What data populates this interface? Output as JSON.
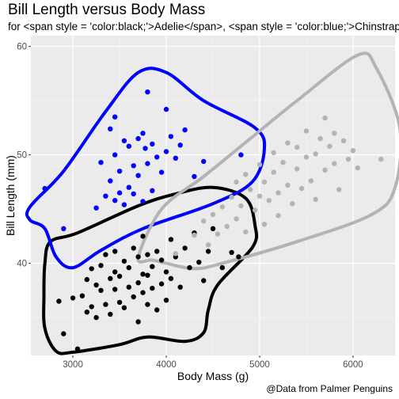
{
  "chart_data": {
    "type": "scatter",
    "title": "Bill Length versus Body Mass",
    "subtitle": "for <span style = 'color:black;'>Adelie</span>, <span style = 'color:blue;'>Chinstrap</span>, and <span style = 'color:gray;'>Gentoo</span> penguins",
    "caption": "@Data from Palmer Penguins",
    "xlabel": "Body Mass (g)",
    "ylabel": "Bill Length (mm)",
    "xlim": [
      2550,
      6450
    ],
    "ylim": [
      31.5,
      61.0
    ],
    "x_ticks": [
      3000,
      4000,
      5000,
      6000
    ],
    "y_ticks": [
      40,
      50,
      60
    ],
    "grid": true,
    "series": [
      {
        "color": "#000000",
        "points": [
          [
            2850,
            36.5
          ],
          [
            2900,
            33.5
          ],
          [
            3000,
            36.8
          ],
          [
            3050,
            32.1
          ],
          [
            3100,
            37.0
          ],
          [
            3150,
            38.5
          ],
          [
            3150,
            35.5
          ],
          [
            3200,
            36.0
          ],
          [
            3200,
            39.5
          ],
          [
            3250,
            38.0
          ],
          [
            3250,
            35.0
          ],
          [
            3300,
            37.5
          ],
          [
            3300,
            39.8
          ],
          [
            3350,
            36.2
          ],
          [
            3350,
            40.8
          ],
          [
            3400,
            38.6
          ],
          [
            3400,
            35.3
          ],
          [
            3450,
            37.6
          ],
          [
            3450,
            39.2
          ],
          [
            3450,
            41.1
          ],
          [
            3500,
            36.4
          ],
          [
            3500,
            38.8
          ],
          [
            3550,
            40.2
          ],
          [
            3550,
            35.9
          ],
          [
            3600,
            37.8
          ],
          [
            3600,
            39.6
          ],
          [
            3650,
            41.4
          ],
          [
            3650,
            36.9
          ],
          [
            3700,
            38.2
          ],
          [
            3700,
            40.6
          ],
          [
            3700,
            34.6
          ],
          [
            3750,
            37.3
          ],
          [
            3750,
            39.0
          ],
          [
            3750,
            42.5
          ],
          [
            3800,
            36.2
          ],
          [
            3800,
            38.9
          ],
          [
            3800,
            40.8
          ],
          [
            3850,
            37.7
          ],
          [
            3850,
            39.7
          ],
          [
            3900,
            41.1
          ],
          [
            3900,
            35.7
          ],
          [
            3950,
            38.1
          ],
          [
            3950,
            40.3
          ],
          [
            4000,
            36.6
          ],
          [
            4000,
            39.2
          ],
          [
            4050,
            42.2
          ],
          [
            4050,
            38.6
          ],
          [
            4100,
            40.6
          ],
          [
            4150,
            37.8
          ],
          [
            4200,
            41.4
          ],
          [
            4250,
            39.6
          ],
          [
            4300,
            42.8
          ],
          [
            4350,
            40.1
          ],
          [
            4400,
            38.4
          ],
          [
            4450,
            41.1
          ],
          [
            4500,
            43.2
          ],
          [
            4600,
            39.6
          ],
          [
            4700,
            41.0
          ],
          [
            4775,
            40.6
          ]
        ]
      },
      {
        "color": "#0000ff",
        "points": [
          [
            2700,
            46.9
          ],
          [
            2900,
            43.2
          ],
          [
            3250,
            45.1
          ],
          [
            3300,
            49.3
          ],
          [
            3350,
            46.2
          ],
          [
            3400,
            52.4
          ],
          [
            3400,
            47.6
          ],
          [
            3450,
            50.0
          ],
          [
            3450,
            45.8
          ],
          [
            3500,
            48.5
          ],
          [
            3500,
            46.5
          ],
          [
            3550,
            51.3
          ],
          [
            3550,
            45.4
          ],
          [
            3600,
            47.0
          ],
          [
            3600,
            50.8
          ],
          [
            3650,
            49.0
          ],
          [
            3650,
            46.4
          ],
          [
            3700,
            51.5
          ],
          [
            3700,
            48.1
          ],
          [
            3750,
            45.7
          ],
          [
            3750,
            52.0
          ],
          [
            3775,
            50.6
          ],
          [
            3800,
            49.2
          ],
          [
            3850,
            51.0
          ],
          [
            3850,
            46.7
          ],
          [
            3900,
            49.8
          ],
          [
            3950,
            48.4
          ],
          [
            4000,
            50.3
          ],
          [
            4050,
            51.7
          ],
          [
            4100,
            49.7
          ],
          [
            4150,
            50.9
          ],
          [
            4300,
            48.0
          ],
          [
            4400,
            49.4
          ],
          [
            4800,
            50.0
          ],
          [
            3800,
            55.8
          ],
          [
            4000,
            54.2
          ],
          [
            4200,
            52.3
          ],
          [
            3450,
            53.5
          ]
        ]
      },
      {
        "color": "#b3b3b3",
        "points": [
          [
            4100,
            40.9
          ],
          [
            4300,
            42.6
          ],
          [
            4400,
            43.9
          ],
          [
            4450,
            41.7
          ],
          [
            4500,
            44.5
          ],
          [
            4550,
            42.7
          ],
          [
            4600,
            45.2
          ],
          [
            4650,
            43.4
          ],
          [
            4700,
            46.1
          ],
          [
            4750,
            44.1
          ],
          [
            4750,
            47.5
          ],
          [
            4800,
            45.3
          ],
          [
            4850,
            48.2
          ],
          [
            4850,
            42.9
          ],
          [
            4900,
            46.8
          ],
          [
            4950,
            44.9
          ],
          [
            5000,
            49.1
          ],
          [
            5000,
            46.2
          ],
          [
            5050,
            43.6
          ],
          [
            5050,
            47.5
          ],
          [
            5100,
            45.8
          ],
          [
            5150,
            50.2
          ],
          [
            5150,
            48.4
          ],
          [
            5200,
            46.5
          ],
          [
            5200,
            44.4
          ],
          [
            5250,
            49.3
          ],
          [
            5300,
            47.2
          ],
          [
            5300,
            51.1
          ],
          [
            5350,
            45.5
          ],
          [
            5400,
            48.7
          ],
          [
            5400,
            50.7
          ],
          [
            5450,
            46.9
          ],
          [
            5500,
            49.8
          ],
          [
            5500,
            52.2
          ],
          [
            5550,
            47.6
          ],
          [
            5600,
            50.1
          ],
          [
            5600,
            45.9
          ],
          [
            5650,
            51.5
          ],
          [
            5700,
            48.6
          ],
          [
            5700,
            53.4
          ],
          [
            5750,
            50.8
          ],
          [
            5800,
            49.2
          ],
          [
            5800,
            52.0
          ],
          [
            5850,
            46.8
          ],
          [
            5900,
            51.3
          ],
          [
            5950,
            49.6
          ],
          [
            6000,
            50.4
          ],
          [
            6050,
            48.8
          ],
          [
            6300,
            49.6
          ]
        ]
      }
    ],
    "hulls": [
      {
        "color": "#000000",
        "points": [
          [
            2700,
            40.0
          ],
          [
            2760,
            42.0
          ],
          [
            3050,
            42.8
          ],
          [
            3700,
            45.3
          ],
          [
            4100,
            46.4
          ],
          [
            4500,
            47.0
          ],
          [
            4850,
            46.0
          ],
          [
            4950,
            43.5
          ],
          [
            4925,
            41.5
          ],
          [
            4550,
            38.0
          ],
          [
            4450,
            35.7
          ],
          [
            4400,
            33.6
          ],
          [
            4200,
            32.8
          ],
          [
            3800,
            33.2
          ],
          [
            3500,
            32.5
          ],
          [
            3000,
            31.8
          ],
          [
            2820,
            31.9
          ],
          [
            2700,
            34.0
          ],
          [
            2690,
            37.0
          ]
        ]
      },
      {
        "color": "#0000ff",
        "points": [
          [
            2540,
            45.2
          ],
          [
            2900,
            48.5
          ],
          [
            3350,
            54.0
          ],
          [
            3700,
            57.6
          ],
          [
            4000,
            57.6
          ],
          [
            4400,
            55.0
          ],
          [
            4950,
            52.5
          ],
          [
            5050,
            50.5
          ],
          [
            4920,
            47.5
          ],
          [
            4500,
            45.5
          ],
          [
            3750,
            43.2
          ],
          [
            3300,
            41.2
          ],
          [
            3000,
            39.6
          ],
          [
            2820,
            40.6
          ],
          [
            2700,
            43.2
          ],
          [
            2540,
            44.0
          ]
        ]
      },
      {
        "color": "#b3b3b3",
        "points": [
          [
            3700,
            40.5
          ],
          [
            3950,
            45.0
          ],
          [
            4400,
            48.0
          ],
          [
            4900,
            51.5
          ],
          [
            5400,
            55.0
          ],
          [
            6050,
            59.2
          ],
          [
            6250,
            58.0
          ],
          [
            6500,
            52.5
          ],
          [
            6450,
            47.0
          ],
          [
            6200,
            44.5
          ],
          [
            5400,
            42.0
          ],
          [
            4600,
            40.0
          ],
          [
            4300,
            39.5
          ],
          [
            4000,
            40.0
          ],
          [
            3850,
            40.3
          ]
        ]
      }
    ]
  }
}
